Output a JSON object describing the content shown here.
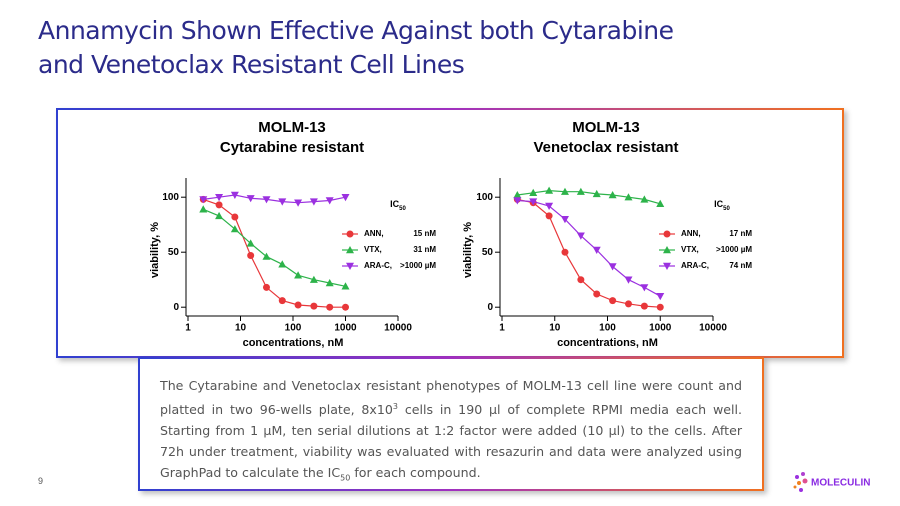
{
  "slide": {
    "title": [
      "Annamycin Shown Effective Against both Cytarabine",
      "and Venetoclax Resistant Cell Lines"
    ],
    "description": [
      "The Cytarabine and Venetoclax resistant phenotypes of MOLM-13 cell line were count and platted in two 96-wells plate, 8x10",
      "3",
      " cells in 190 µl of complete RPMI media each well. Starting from 1 µM, ten serial dilutions at 1:2 factor were added (10 µl) to the cells. After 72h under treatment, viability was evaluated with resazurin and data were analyzed using GraphPad to calculate the IC",
      "50",
      " for each compound."
    ],
    "page_number": "9",
    "logo": "MOLECULIN"
  },
  "chart_data": [
    {
      "type": "line",
      "title": "MOLM-13",
      "subtitle": "Cytarabine resistant",
      "xlabel": "concentrations, nM",
      "ylabel": "viability, %",
      "xscale": "log",
      "xlim": [
        1,
        10000
      ],
      "xticks": [
        1,
        10,
        100,
        1000,
        10000
      ],
      "ylim": [
        -8,
        112
      ],
      "yticks": [
        0,
        50,
        100
      ],
      "legend_title": "IC",
      "legend_title_sub": "50",
      "x": [
        1.953125,
        3.90625,
        7.8125,
        15.625,
        31.25,
        62.5,
        125,
        250,
        500,
        1000
      ],
      "series": [
        {
          "name": "ANN,",
          "ic50": "15 nM",
          "color": "#e8373a",
          "marker": "circle",
          "values": [
            98,
            93,
            82,
            47,
            18,
            6,
            2,
            1,
            0,
            0
          ]
        },
        {
          "name": "VTX,",
          "ic50": "31 nM",
          "color": "#2db34a",
          "marker": "triangle-up",
          "values": [
            89,
            83,
            71,
            58,
            46,
            39,
            29,
            25,
            22,
            19
          ]
        },
        {
          "name": "ARA-C,",
          "ic50": ">1000 µM",
          "color": "#9b30e0",
          "marker": "triangle-down",
          "values": [
            98,
            100,
            102,
            99,
            98,
            96,
            95,
            96,
            97,
            100
          ]
        }
      ]
    },
    {
      "type": "line",
      "title": "MOLM-13",
      "subtitle": "Venetoclax resistant",
      "xlabel": "concentrations, nM",
      "ylabel": "viability, %",
      "xscale": "log",
      "xlim": [
        1,
        10000
      ],
      "xticks": [
        1,
        10,
        100,
        1000,
        10000
      ],
      "ylim": [
        -8,
        112
      ],
      "yticks": [
        0,
        50,
        100
      ],
      "legend_title": "IC",
      "legend_title_sub": "50",
      "x": [
        1.953125,
        3.90625,
        7.8125,
        15.625,
        31.25,
        62.5,
        125,
        250,
        500,
        1000
      ],
      "series": [
        {
          "name": "ANN,",
          "ic50": "17 nM",
          "color": "#e8373a",
          "marker": "circle",
          "values": [
            98,
            95,
            83,
            50,
            25,
            12,
            6,
            3,
            1,
            0
          ]
        },
        {
          "name": "VTX,",
          "ic50": ">1000 µM",
          "color": "#2db34a",
          "marker": "triangle-up",
          "values": [
            102,
            104,
            106,
            105,
            105,
            103,
            102,
            100,
            98,
            94
          ]
        },
        {
          "name": "ARA-C,",
          "ic50": "74 nM",
          "color": "#9b30e0",
          "marker": "triangle-down",
          "values": [
            97,
            96,
            92,
            80,
            65,
            52,
            37,
            25,
            18,
            10
          ]
        }
      ]
    }
  ]
}
